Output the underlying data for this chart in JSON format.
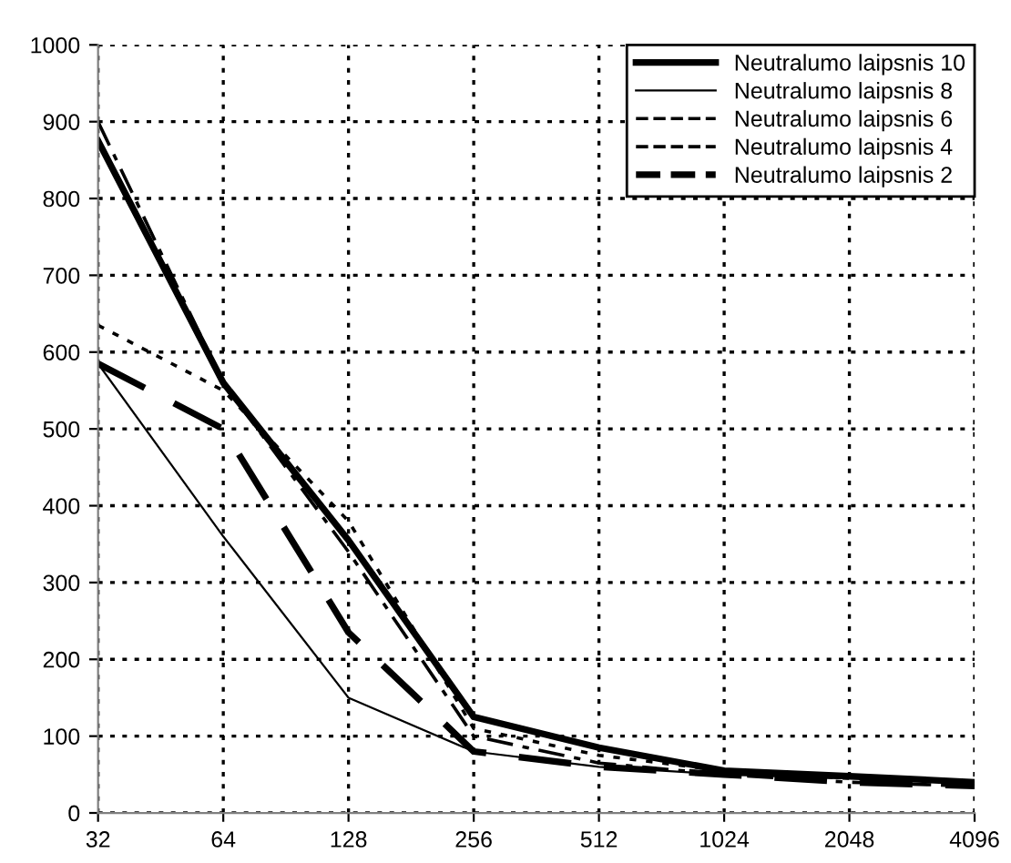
{
  "chart_data": {
    "type": "line",
    "categories": [
      "32",
      "64",
      "128",
      "256",
      "512",
      "1024",
      "2048",
      "4096"
    ],
    "series": [
      {
        "name": "Neutralumo laipsnis 10",
        "color": "#000000",
        "line_style": "solid",
        "values": [
          875,
          560,
          355,
          125,
          85,
          55,
          48,
          40
        ]
      },
      {
        "name": "Neutralumo laipsnis 8",
        "color": "#000000",
        "line_style": "solid",
        "values": [
          585,
          360,
          150,
          80,
          60,
          50,
          45,
          40
        ]
      },
      {
        "name": "Neutralumo laipsnis 6",
        "color": "#000000",
        "line_style": "dotted",
        "values": [
          635,
          550,
          380,
          110,
          75,
          55,
          45,
          40
        ]
      },
      {
        "name": "Neutralumo laipsnis 4",
        "color": "#000000",
        "line_style": "dashdot",
        "values": [
          900,
          560,
          340,
          100,
          65,
          50,
          40,
          35
        ]
      },
      {
        "name": "Neutralumo laipsnis 2",
        "color": "#000000",
        "line_style": "dashed",
        "values": [
          585,
          500,
          235,
          80,
          60,
          50,
          40,
          35
        ]
      }
    ],
    "ylim": [
      0,
      1000
    ],
    "yticks": [
      0,
      100,
      200,
      300,
      400,
      500,
      600,
      700,
      800,
      900,
      1000
    ],
    "grid": true,
    "legend": "top right",
    "marker": "none"
  }
}
